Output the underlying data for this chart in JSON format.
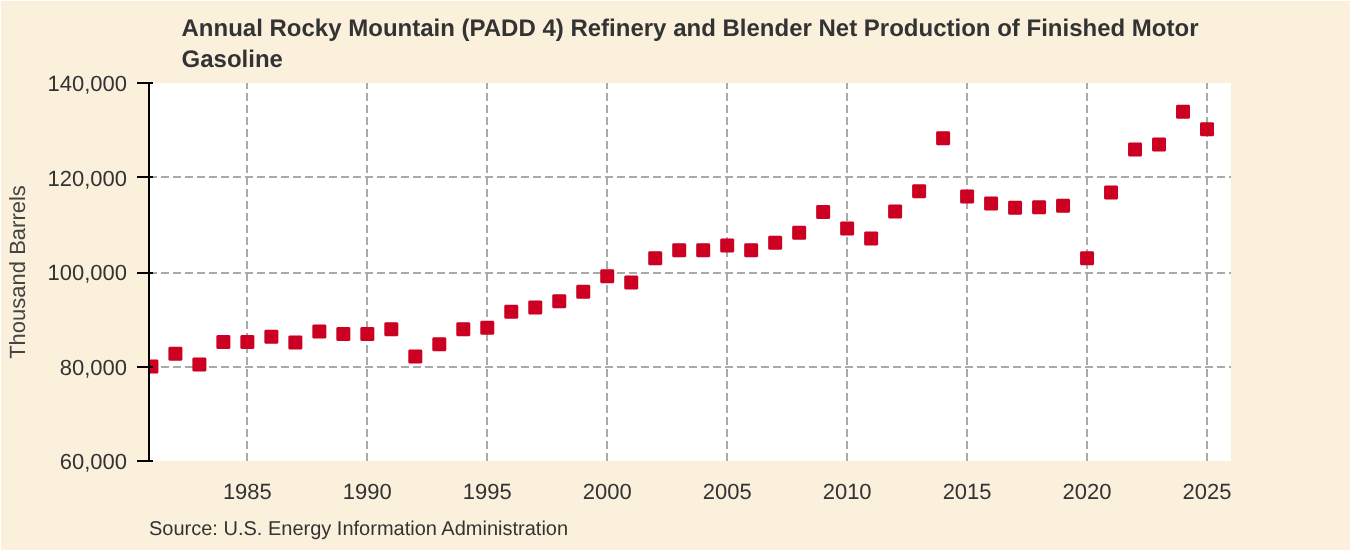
{
  "chart_data": {
    "type": "scatter",
    "title": "Annual Rocky Mountain (PADD 4) Refinery and Blender Net Production of Finished Motor\nGasoline",
    "ylabel": "Thousand Barrels",
    "annotations": [
      "Source: U.S. Energy Information Administration"
    ],
    "x": [
      1981,
      1982,
      1983,
      1984,
      1985,
      1986,
      1987,
      1988,
      1989,
      1990,
      1991,
      1992,
      1993,
      1994,
      1995,
      1996,
      1997,
      1998,
      1999,
      2000,
      2001,
      2002,
      2003,
      2004,
      2005,
      2006,
      2007,
      2008,
      2009,
      2010,
      2011,
      2012,
      2013,
      2014,
      2015,
      2016,
      2017,
      2018,
      2019,
      2020,
      2021,
      2022,
      2023,
      2024,
      2025
    ],
    "series": [
      {
        "color": "#cc0022",
        "values": [
          80000,
          82700,
          80400,
          85200,
          85200,
          86300,
          85100,
          87400,
          86900,
          86900,
          87900,
          82100,
          84700,
          87900,
          88200,
          91600,
          92500,
          93800,
          95800,
          99100,
          97800,
          102900,
          104600,
          104600,
          105600,
          104600,
          106200,
          108300,
          112700,
          109200,
          107100,
          112800,
          117100,
          128300,
          116000,
          114500,
          113600,
          113700,
          114000,
          102900,
          116800,
          125900,
          127000,
          133900,
          130200
        ]
      }
    ],
    "xlim": [
      1980.9,
      2026
    ],
    "xticks": [
      1985,
      1990,
      1995,
      2000,
      2005,
      2010,
      2015,
      2020,
      2025
    ],
    "ylim": [
      60000,
      140000
    ],
    "yticks": [
      {
        "value": 60000,
        "label": "60,000"
      },
      {
        "value": 80000,
        "label": "80,000"
      },
      {
        "value": 100000,
        "label": "100,000"
      },
      {
        "value": 120000,
        "label": "120,000"
      },
      {
        "value": 140000,
        "label": "140,000"
      }
    ],
    "grid": true,
    "marker": "square"
  }
}
